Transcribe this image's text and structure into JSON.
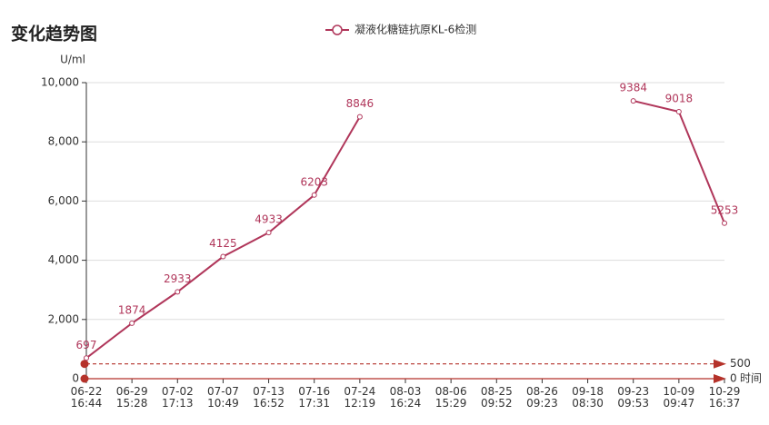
{
  "chart_data": {
    "type": "line",
    "title": "变化趋势图",
    "y_label": "U/ml",
    "x_label": "时间",
    "categories": [
      "06-22\n16:44",
      "06-29\n15:28",
      "07-02\n17:13",
      "07-07\n10:49",
      "07-13\n16:52",
      "07-16\n17:31",
      "07-24\n12:19",
      "08-03\n16:24",
      "08-06\n15:29",
      "08-25\n09:52",
      "08-26\n09:23",
      "09-18\n08:30",
      "09-23\n09:53",
      "10-09\n09:47",
      "10-29\n16:37"
    ],
    "series": [
      {
        "name": "凝液化糖链抗原KL-6检测",
        "color": "#b0365a",
        "values": [
          697,
          1874,
          2933,
          4125,
          4933,
          6203,
          8846,
          null,
          null,
          null,
          null,
          null,
          9384,
          9018,
          5253
        ]
      }
    ],
    "ylim": [
      0,
      10000
    ],
    "yticks": [
      0,
      {
        "value": 2000,
        "label": "2,000"
      },
      {
        "value": 4000,
        "label": "4,000"
      },
      {
        "value": 6000,
        "label": "6,000"
      },
      {
        "value": 8000,
        "label": "8,000"
      },
      {
        "value": 10000,
        "label": "10,000"
      }
    ],
    "mark_lines": [
      500,
      0
    ],
    "mark_color": "#b5322a",
    "grid": true
  }
}
